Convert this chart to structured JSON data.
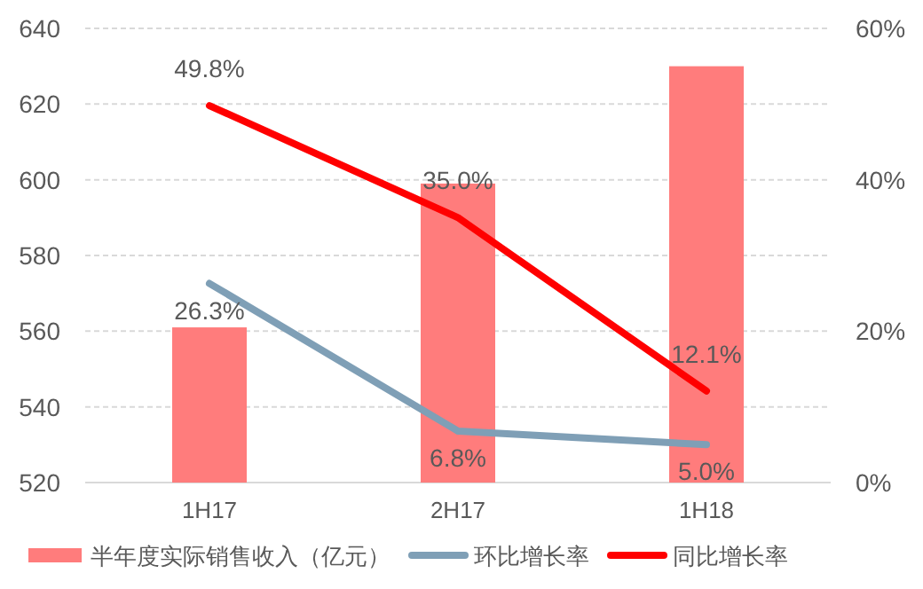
{
  "chart_data": {
    "type": "bar",
    "categories": [
      "1H17",
      "2H17",
      "1H18"
    ],
    "series": [
      {
        "name": "半年度实际销售收入（亿元）",
        "color": "#ff7c7c",
        "values": [
          561,
          599,
          630
        ]
      },
      {
        "name": "环比增长率",
        "type": "line",
        "axis": "y2",
        "color": "#7f9fb6",
        "values": [
          26.3,
          6.8,
          5.0
        ],
        "value_labels": [
          "26.3%",
          "6.8%",
          "5.0%"
        ]
      },
      {
        "name": "同比增长率",
        "type": "line",
        "axis": "y2",
        "color": "#ff0000",
        "values": [
          49.8,
          35.0,
          12.1
        ],
        "value_labels": [
          "49.8%",
          "35.0%",
          "12.1%"
        ]
      }
    ],
    "ylim": [
      520,
      640
    ],
    "yticks": [
      520,
      540,
      560,
      580,
      600,
      620,
      640
    ],
    "y2lim": [
      0,
      60
    ],
    "y2ticks": [
      {
        "value": 0,
        "label": "0%"
      },
      {
        "value": 20,
        "label": "20%"
      },
      {
        "value": 40,
        "label": "40%"
      },
      {
        "value": 60,
        "label": "60%"
      }
    ],
    "grid": "y",
    "legend": "bottom"
  }
}
